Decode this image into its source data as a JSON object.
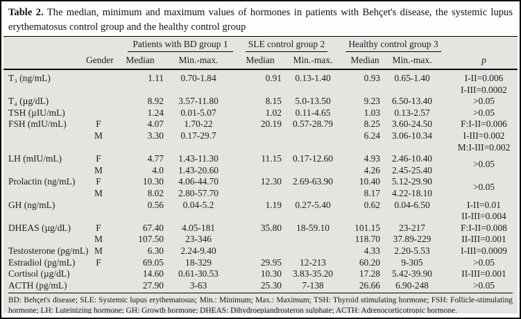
{
  "title": {
    "label": "Table 2.",
    "text": "The median, minimum and maximum values of hormones in patients with Behçet's disease, the systemic lupus erythematosus control group and the healthy control group"
  },
  "table": {
    "groups": [
      "Patients with BD group 1",
      "SLE control group 2",
      "Healthy control group 3"
    ],
    "columns": {
      "gender": "Gender",
      "median": "Median",
      "minmax": "Min.-max.",
      "p": "p"
    },
    "rows": [
      {
        "label": "T₃ (ng/mL)",
        "gender": "",
        "bd_median": "1.11",
        "bd_minmax": "0.70-1.84",
        "sle_median": "0.91",
        "sle_minmax": "0.13-1.40",
        "hc_median": "0.93",
        "hc_minmax": "0.65-1.40",
        "p": "I-II=0.006"
      },
      {
        "p": "I-III=0.0002"
      },
      {
        "label": "T₄ (µg/dL)",
        "bd_median": "8.92",
        "bd_minmax": "3.57-11.80",
        "sle_median": "8.15",
        "sle_minmax": "5.0-13.50",
        "hc_median": "9.23",
        "hc_minmax": "6.50-13.40",
        "p": ">0.05"
      },
      {
        "label": "TSH (µIU/mL)",
        "bd_median": "1.24",
        "bd_minmax": "0.01-5.07",
        "sle_median": "1.02",
        "sle_minmax": "0.11-4.65",
        "hc_median": "1.03",
        "hc_minmax": "0.13-2.57",
        "p": ">0.05"
      },
      {
        "label": "FSH (mIU/mL)",
        "gender": "F",
        "bd_median": "4.07",
        "bd_minmax": "1.70-22",
        "sle_median": "20.19",
        "sle_minmax": "0.57-28.79",
        "hc_median": "8.25",
        "hc_minmax": "3.60-24.50",
        "p": "F:I-II=0.006"
      },
      {
        "gender": "M",
        "bd_median": "3.30",
        "bd_minmax": "0.17-29.7",
        "hc_median": "6.24",
        "hc_minmax": "3.06-10.34",
        "p": "I-III=0.002"
      },
      {
        "p": "M:I-III=0.002"
      },
      {
        "label": "LH (mIU/mL)",
        "gender": "F",
        "bd_median": "4.77",
        "bd_minmax": "1.43-11.30",
        "sle_median": "11.15",
        "sle_minmax": "0.17-12.60",
        "hc_median": "4.93",
        "hc_minmax": "2.46-10.40",
        "p": ">0.05",
        "p_mid": true
      },
      {
        "gender": "M",
        "bd_median": "4.0",
        "bd_minmax": "1.43-20.60",
        "hc_median": "4.26",
        "hc_minmax": "2.45-25.40"
      },
      {
        "label": "Prolactin (ng/mL)",
        "gender": "F",
        "bd_median": "10.30",
        "bd_minmax": "4.06-44.70",
        "sle_median": "12.30",
        "sle_minmax": "2.69-63.90",
        "hc_median": "10.40",
        "hc_minmax": "5.12-29.90",
        "p": ">0.05",
        "p_mid": true
      },
      {
        "gender": "M",
        "bd_median": "8.02",
        "bd_minmax": "2.80-57.70",
        "hc_median": "8.17",
        "hc_minmax": "4.22-18.10"
      },
      {
        "label": "GH (ng/mL)",
        "bd_median": "0.56",
        "bd_minmax": "0.04-5.2",
        "sle_median": "1.19",
        "sle_minmax": "0.27-5.40",
        "hc_median": "0.62",
        "hc_minmax": "0.04-6.50",
        "p": "I-II=0.01"
      },
      {
        "p": "II-III=0.004"
      },
      {
        "label": "DHEAS (µg/dL)",
        "gender": "F",
        "bd_median": "67.40",
        "bd_minmax": "4.05-181",
        "sle_median": "35.80",
        "sle_minmax": "18-59.10",
        "hc_median": "101.15",
        "hc_minmax": "23-217",
        "p": "F:I-II=0.008"
      },
      {
        "gender": "M",
        "bd_median": "107.50",
        "bd_minmax": "23-346",
        "hc_median": "118.70",
        "hc_minmax": "37.89-229",
        "p": "II-III=0.001"
      },
      {
        "label": "Testosterone (pg/mL)",
        "gender": "M",
        "bd_median": "6.30",
        "bd_minmax": "2.24-9.40",
        "hc_median": "4.33",
        "hc_minmax": "2.20-5.53",
        "p": "I-III=0.0009"
      },
      {
        "label": "Estradiol (pg/mL)",
        "gender": "F",
        "bd_median": "69.05",
        "bd_minmax": "18-329",
        "sle_median": "29.95",
        "sle_minmax": "12-213",
        "hc_median": "60.20",
        "hc_minmax": "9-305",
        "p": ">0.05"
      },
      {
        "label": "Cortisol (µg/dL)",
        "bd_median": "14.60",
        "bd_minmax": "0.61-30.53",
        "sle_median": "10.30",
        "sle_minmax": "3.83-35.20",
        "hc_median": "17.28",
        "hc_minmax": "5.42-39.90",
        "p": "II-III=0.001"
      },
      {
        "label": "ACTH (pg/mL)",
        "bd_median": "27.90",
        "bd_minmax": "3-63",
        "sle_median": "25.30",
        "sle_minmax": "7-138",
        "hc_median": "26.66",
        "hc_minmax": "6.90-248",
        "p": ">0.05"
      }
    ]
  },
  "footnote": "BD: Behçet's disease; SLE: Systemic lupus erythematosus; Min.: Minimum; Max.: Maximum; TSH: Thyroid stimulating hormone; FSH: Follicle-stimulating hormone; LH: Luteinizing hormone; GH: Growth hormone; DHEAS: Dihydroepiandrosteron sulphate; ACTH: Adrenocorticotropic hormone.",
  "colors": {
    "panel_bg": "#e4e5e1",
    "border": "#000000",
    "text": "#1b1b1b"
  }
}
